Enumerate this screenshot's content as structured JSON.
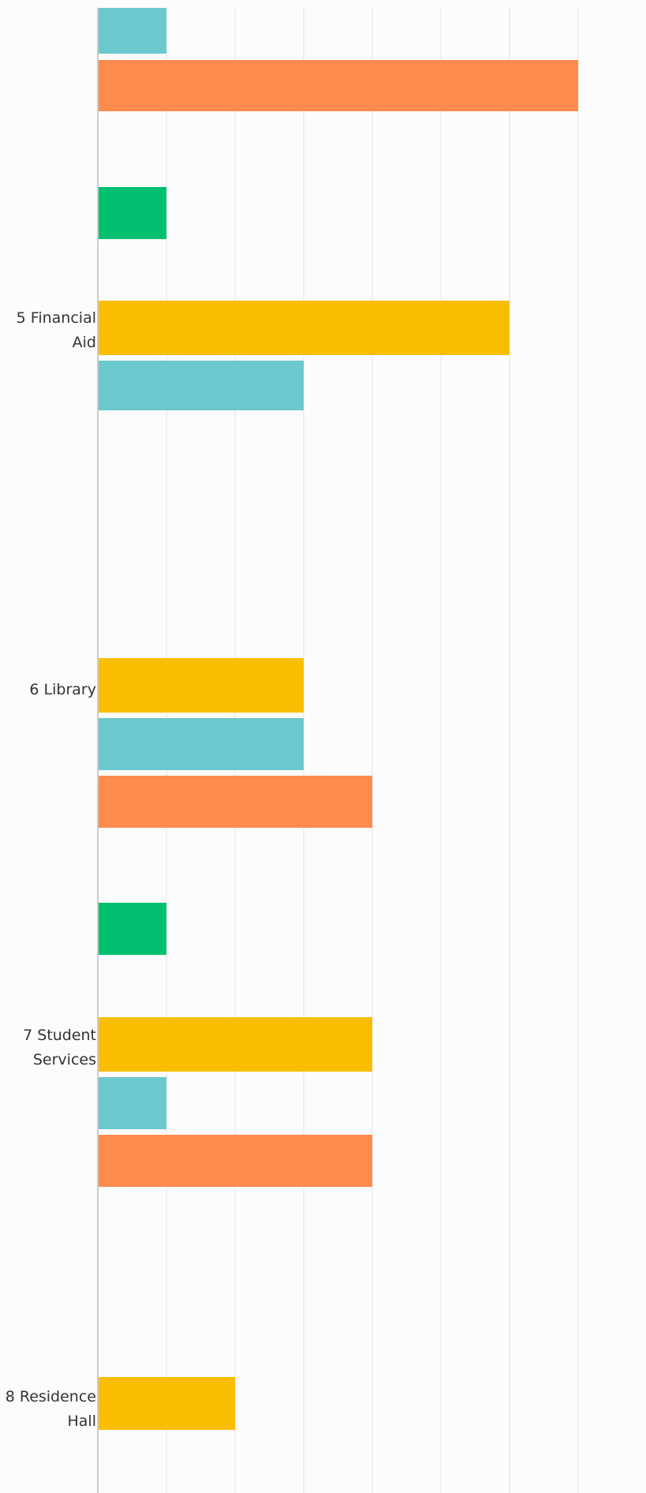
{
  "chart_data": {
    "type": "bar",
    "orientation": "horizontal",
    "title": "",
    "xlabel": "",
    "ylabel": "",
    "xlim": [
      0,
      7
    ],
    "grid": true,
    "categories": [
      {
        "id": "4",
        "label_lines": [],
        "bars": [
          {
            "color": "#00BF6F",
            "value": null
          },
          {
            "color": "#F9BE00",
            "value": null
          },
          {
            "color": "#6BC8CD",
            "value": 1
          },
          {
            "color": "#FF8B4F",
            "value": 7
          }
        ]
      },
      {
        "id": "5",
        "label_lines": [
          "5 Financial",
          "Aid"
        ],
        "bars": [
          {
            "color": "#00BF6F",
            "value": 1
          },
          {
            "color": "#F9BE00",
            "value": 6
          },
          {
            "color": "#6BC8CD",
            "value": 3
          },
          {
            "color": "#FF8B4F",
            "value": 0
          }
        ]
      },
      {
        "id": "6",
        "label_lines": [
          "6 Library"
        ],
        "bars": [
          {
            "color": "#00BF6F",
            "value": 0
          },
          {
            "color": "#F9BE00",
            "value": 3
          },
          {
            "color": "#6BC8CD",
            "value": 3
          },
          {
            "color": "#FF8B4F",
            "value": 4
          }
        ]
      },
      {
        "id": "7",
        "label_lines": [
          "7 Student",
          "Services"
        ],
        "bars": [
          {
            "color": "#00BF6F",
            "value": 1
          },
          {
            "color": "#F9BE00",
            "value": 4
          },
          {
            "color": "#6BC8CD",
            "value": 1
          },
          {
            "color": "#FF8B4F",
            "value": 4
          }
        ]
      },
      {
        "id": "8",
        "label_lines": [
          "8 Residence",
          "Hall"
        ],
        "bars": [
          {
            "color": "#00BF6F",
            "value": 0
          },
          {
            "color": "#F9BE00",
            "value": 2
          },
          {
            "color": "#6BC8CD",
            "value": null
          },
          {
            "color": "#FF8B4F",
            "value": null
          }
        ]
      }
    ]
  },
  "colors": {
    "background": "#fcfcfc",
    "grid": "#e3e3e3",
    "axis": "#bbbbbb",
    "label": "#333333"
  }
}
